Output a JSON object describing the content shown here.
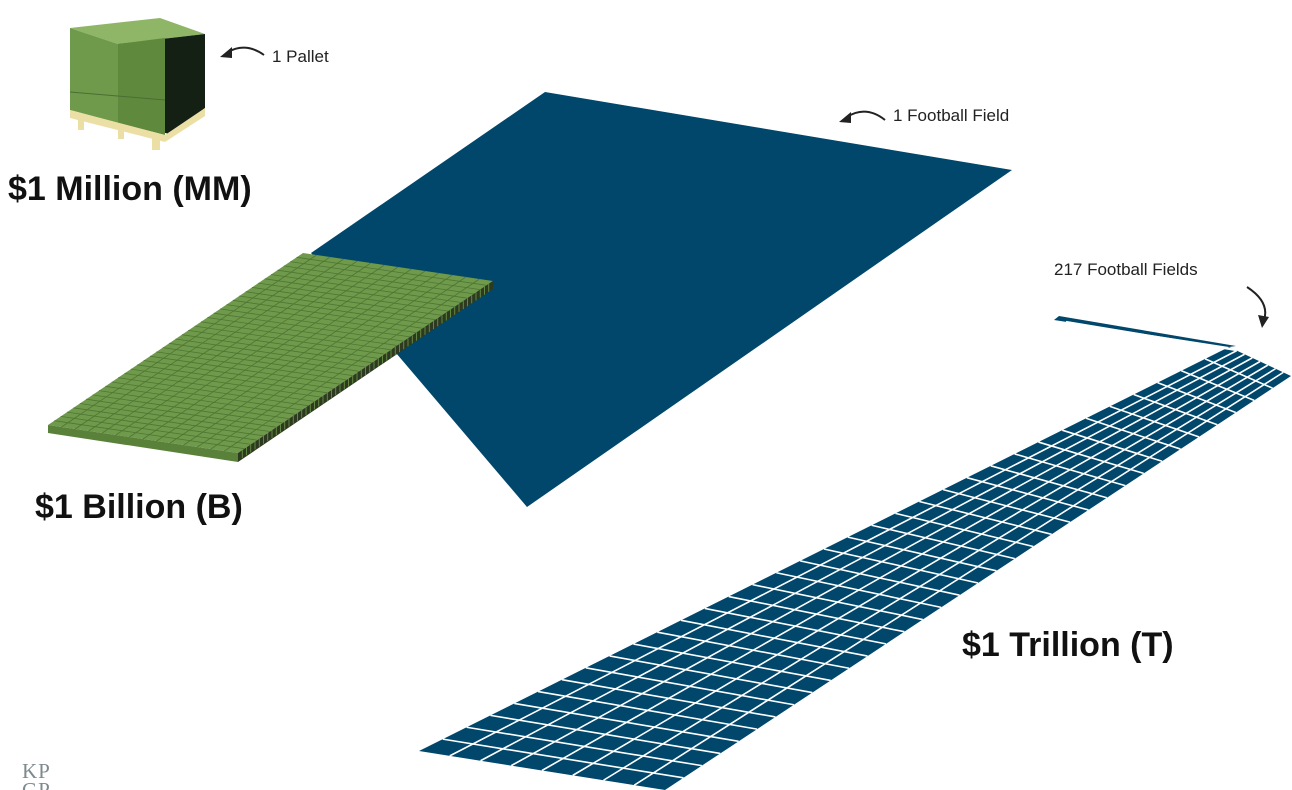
{
  "labels": {
    "million": "$1 Million (MM)",
    "billion": "$1 Billion (B)",
    "trillion": "$1 Trillion (T)",
    "pallet": "1 Pallet",
    "football_field": "1 Football Field",
    "football_fields": "217 Football Fields"
  },
  "logo": {
    "line1": "KP",
    "line2": "GP"
  },
  "footer": {
    "left": "",
    "right": ""
  },
  "colors": {
    "field_blue": "#00476b",
    "money_green": "#6f9a4c",
    "money_dark": "#2d3a1f",
    "pallet_wood": "#ecdfa6",
    "text": "#111111",
    "logo_gray": "#7d8a8e"
  }
}
